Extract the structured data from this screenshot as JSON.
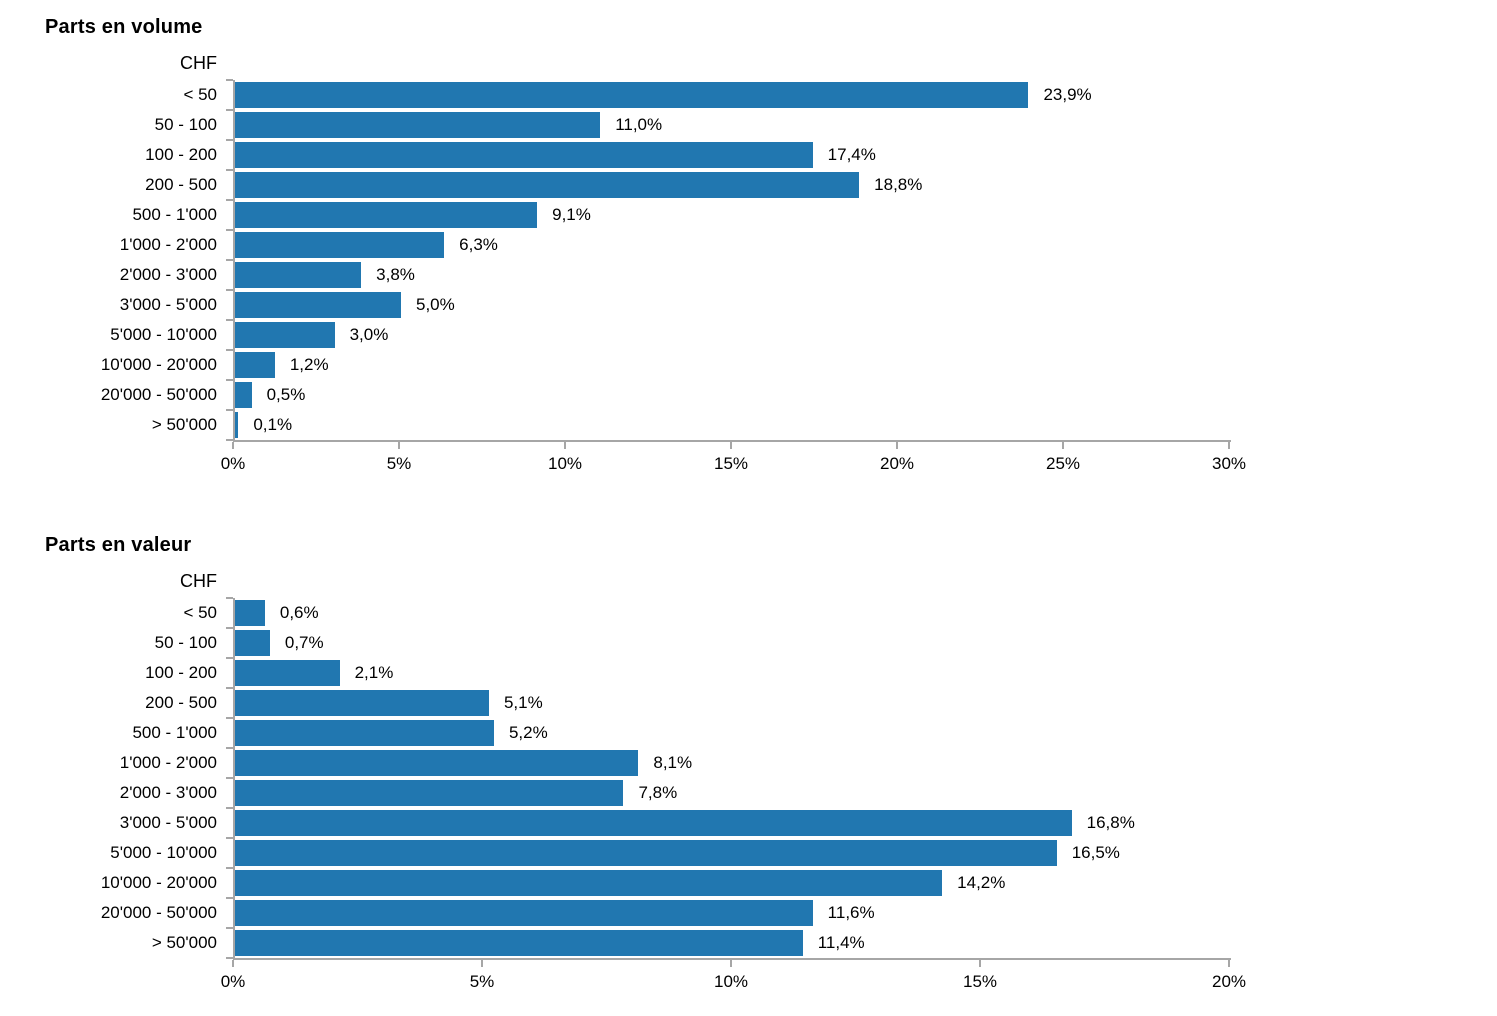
{
  "colors": {
    "bar": "#2177b0",
    "axis": "#a6a6a6",
    "text": "#000000",
    "background": "#ffffff"
  },
  "chart_data": [
    {
      "type": "bar",
      "orientation": "horizontal",
      "title": "Parts en volume",
      "unit_label": "CHF",
      "categories": [
        "< 50",
        "50 - 100",
        "100 - 200",
        "200 - 500",
        "500 - 1'000",
        "1'000 - 2'000",
        "2'000 - 3'000",
        "3'000 - 5'000",
        "5'000 - 10'000",
        "10'000 - 20'000",
        "20'000 - 50'000",
        "> 50'000"
      ],
      "values": [
        23.9,
        11.0,
        17.4,
        18.8,
        9.1,
        6.3,
        3.8,
        5.0,
        3.0,
        1.2,
        0.5,
        0.1
      ],
      "value_labels": [
        "23,9%",
        "11,0%",
        "17,4%",
        "18,8%",
        "9,1%",
        "6,3%",
        "3,8%",
        "5,0%",
        "3,0%",
        "1,2%",
        "0,5%",
        "0,1%"
      ],
      "xlim": [
        0,
        30
      ],
      "ticks": [
        "0%",
        "5%",
        "10%",
        "15%",
        "20%",
        "25%",
        "30%"
      ],
      "tick_values": [
        0,
        5,
        10,
        15,
        20,
        25,
        30
      ],
      "xlabel": "",
      "ylabel": "",
      "grid": false,
      "legend": "none",
      "data_labels": true
    },
    {
      "type": "bar",
      "orientation": "horizontal",
      "title": "Parts en valeur",
      "unit_label": "CHF",
      "categories": [
        "< 50",
        "50 - 100",
        "100 - 200",
        "200 - 500",
        "500 - 1'000",
        "1'000 - 2'000",
        "2'000 - 3'000",
        "3'000 - 5'000",
        "5'000 - 10'000",
        "10'000 - 20'000",
        "20'000 - 50'000",
        "> 50'000"
      ],
      "values": [
        0.6,
        0.7,
        2.1,
        5.1,
        5.2,
        8.1,
        7.8,
        16.8,
        16.5,
        14.2,
        11.6,
        11.4
      ],
      "value_labels": [
        "0,6%",
        "0,7%",
        "2,1%",
        "5,1%",
        "5,2%",
        "8,1%",
        "7,8%",
        "16,8%",
        "16,5%",
        "14,2%",
        "11,6%",
        "11,4%"
      ],
      "xlim": [
        0,
        20
      ],
      "ticks": [
        "0%",
        "5%",
        "10%",
        "15%",
        "20%"
      ],
      "tick_values": [
        0,
        5,
        10,
        15,
        20
      ],
      "xlabel": "",
      "ylabel": "",
      "grid": false,
      "legend": "none",
      "data_labels": true
    }
  ]
}
